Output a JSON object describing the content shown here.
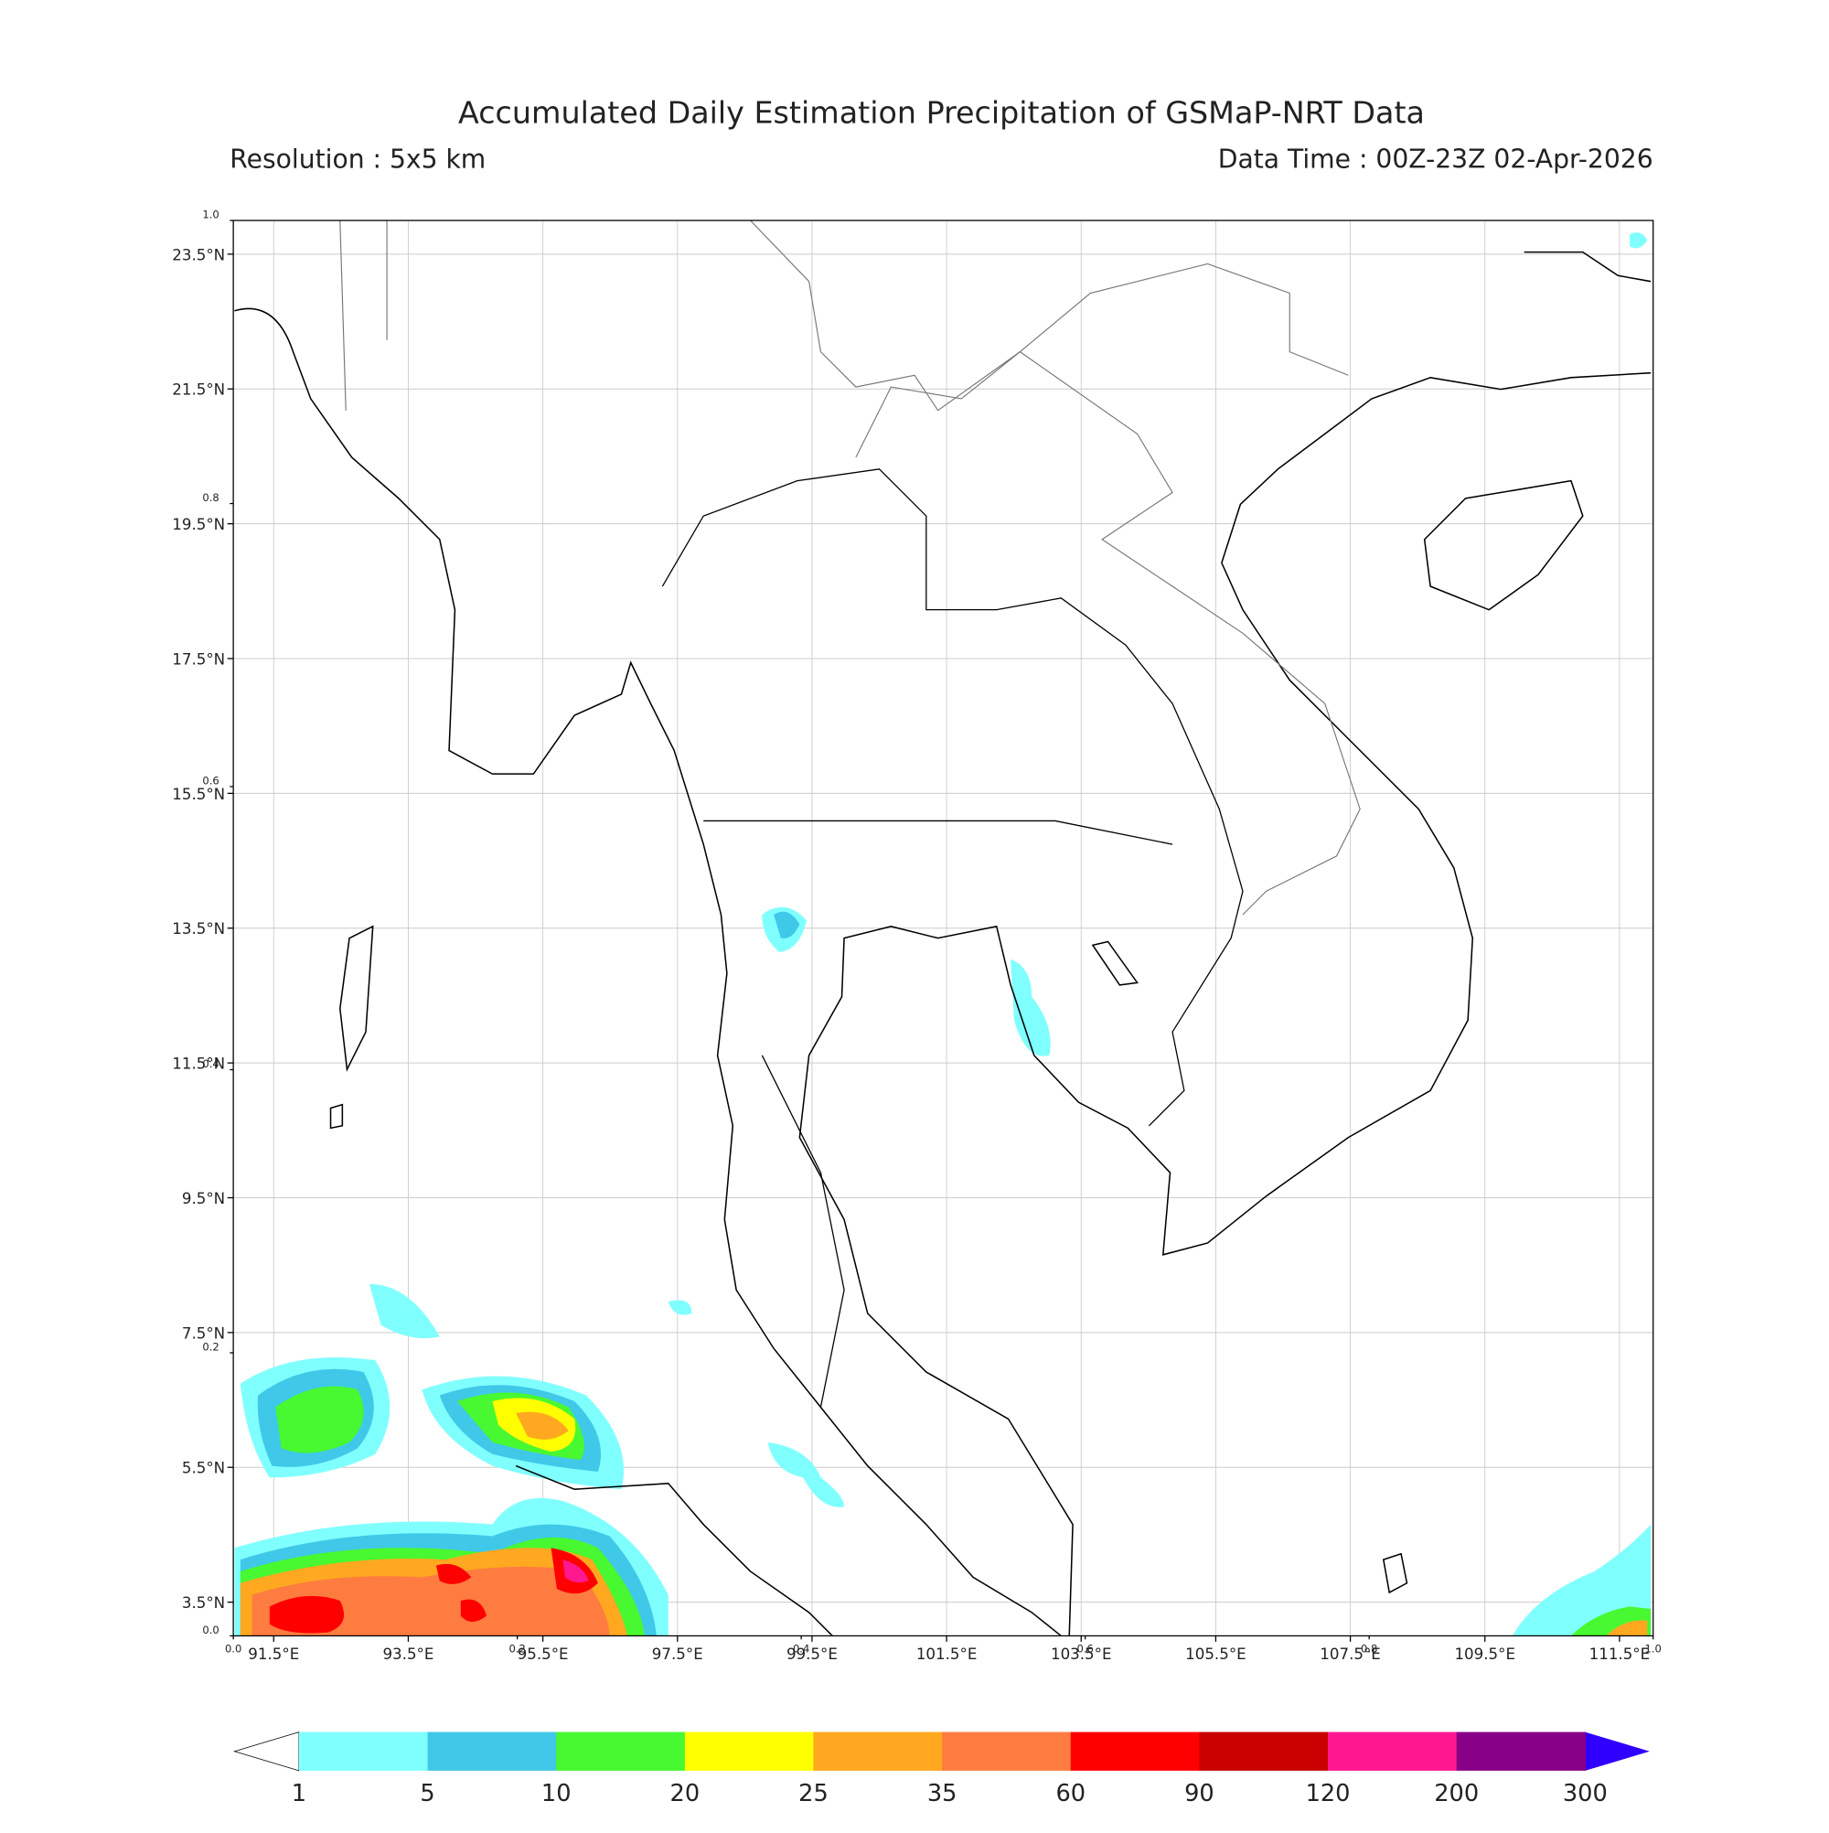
{
  "header": {
    "title": "Accumulated Daily Estimation Precipitation of GSMaP-NRT Data",
    "resolution": "Resolution : 5x5 km",
    "data_time": "Data Time : 00Z-23Z 02-Apr-2026"
  },
  "map": {
    "xlim": [
      90.9,
      112.0
    ],
    "ylim": [
      3.0,
      24.0
    ],
    "lon_ticks": [
      {
        "value": 91.5,
        "label": "91.5°E"
      },
      {
        "value": 93.5,
        "label": "93.5°E"
      },
      {
        "value": 95.5,
        "label": "95.5°E"
      },
      {
        "value": 97.5,
        "label": "97.5°E"
      },
      {
        "value": 99.5,
        "label": "99.5°E"
      },
      {
        "value": 101.5,
        "label": "101.5°E"
      },
      {
        "value": 103.5,
        "label": "103.5°E"
      },
      {
        "value": 105.5,
        "label": "105.5°E"
      },
      {
        "value": 107.5,
        "label": "107.5°E"
      },
      {
        "value": 109.5,
        "label": "109.5°E"
      },
      {
        "value": 111.5,
        "label": "111.5°E"
      }
    ],
    "lat_ticks": [
      {
        "value": 3.5,
        "label": "3.5°N"
      },
      {
        "value": 5.5,
        "label": "5.5°N"
      },
      {
        "value": 7.5,
        "label": "7.5°N"
      },
      {
        "value": 9.5,
        "label": "9.5°N"
      },
      {
        "value": 11.5,
        "label": "11.5°N"
      },
      {
        "value": 13.5,
        "label": "13.5°N"
      },
      {
        "value": 15.5,
        "label": "15.5°N"
      },
      {
        "value": 17.5,
        "label": "17.5°N"
      },
      {
        "value": 19.5,
        "label": "19.5°N"
      },
      {
        "value": 21.5,
        "label": "21.5°N"
      },
      {
        "value": 23.5,
        "label": "23.5°N"
      }
    ],
    "overlay_ticks": [
      {
        "value": 0,
        "label": "0.0"
      },
      {
        "value": 0.2,
        "label": "0.2"
      },
      {
        "value": 0.4,
        "label": "0.4"
      },
      {
        "value": 0.6,
        "label": "0.6"
      },
      {
        "value": 0.8,
        "label": "0.8"
      },
      {
        "value": 1,
        "label": "1.0"
      }
    ]
  },
  "colorbar": {
    "levels": [
      1,
      5,
      10,
      20,
      25,
      35,
      60,
      90,
      120,
      200,
      300
    ],
    "colors": [
      "#80ffff",
      "#40c8e8",
      "#48f830",
      "#ffff00",
      "#ffa820",
      "#ff7c40",
      "#ff0000",
      "#c80000",
      "#ff1890",
      "#880088"
    ],
    "under_color": "#ffffff",
    "over_color": "#3000ff"
  }
}
